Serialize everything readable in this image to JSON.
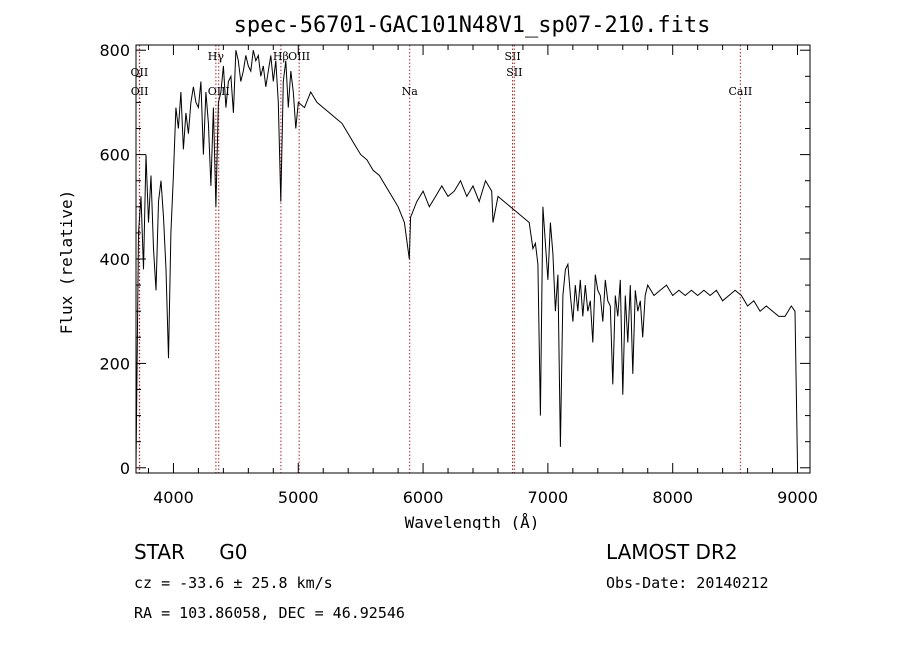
{
  "chart_data": {
    "type": "line",
    "title": "spec-56701-GAC101N48V1_sp07-210.fits",
    "xlabel": "Wavelength (Å)",
    "ylabel": "Flux (relative)",
    "xlim": [
      3700,
      9100
    ],
    "ylim": [
      -10,
      810
    ],
    "x_ticks": [
      4000,
      5000,
      6000,
      7000,
      8000,
      9000
    ],
    "y_ticks": [
      0,
      200,
      400,
      600,
      800
    ],
    "spectral_lines": [
      {
        "label": "OII",
        "wavelength": 3727,
        "row": 1
      },
      {
        "label": "OII",
        "wavelength": 3729,
        "row": 2
      },
      {
        "label": "Hγ",
        "wavelength": 4340,
        "row": 0
      },
      {
        "label": "OIII",
        "wavelength": 4363,
        "row": 2
      },
      {
        "label": "Hβ",
        "wavelength": 4861,
        "row": 0
      },
      {
        "label": "OIII",
        "wavelength": 5007,
        "row": 0
      },
      {
        "label": "Na",
        "wavelength": 5893,
        "row": 2
      },
      {
        "label": "SII",
        "wavelength": 6717,
        "row": 0
      },
      {
        "label": "SII",
        "wavelength": 6731,
        "row": 1
      },
      {
        "label": "CaII",
        "wavelength": 8542,
        "row": 2
      }
    ],
    "series": [
      {
        "x": [
          3700,
          3720,
          3740,
          3760,
          3780,
          3800,
          3820,
          3840,
          3860,
          3880,
          3900,
          3920,
          3940,
          3960,
          3980,
          4000,
          4020,
          4040,
          4060,
          4080,
          4100,
          4120,
          4140,
          4160,
          4180,
          4200,
          4220,
          4240,
          4260,
          4280,
          4300,
          4320,
          4340,
          4360,
          4380,
          4400,
          4420,
          4440,
          4460,
          4480,
          4500,
          4520,
          4540,
          4560,
          4580,
          4600,
          4620,
          4640,
          4660,
          4680,
          4700,
          4720,
          4740,
          4760,
          4780,
          4800,
          4820,
          4840,
          4860,
          4880,
          4900,
          4920,
          4940,
          4960,
          4980,
          5000,
          5050,
          5100,
          5150,
          5200,
          5250,
          5300,
          5350,
          5400,
          5450,
          5500,
          5550,
          5600,
          5650,
          5700,
          5750,
          5800,
          5850,
          5890,
          5900,
          5950,
          6000,
          6050,
          6100,
          6150,
          6200,
          6250,
          6300,
          6350,
          6400,
          6450,
          6500,
          6550,
          6560,
          6600,
          6650,
          6700,
          6750,
          6800,
          6850,
          6880,
          6900,
          6920,
          6940,
          6960,
          6980,
          7000,
          7020,
          7040,
          7060,
          7080,
          7100,
          7120,
          7140,
          7160,
          7180,
          7200,
          7220,
          7240,
          7260,
          7280,
          7300,
          7320,
          7340,
          7360,
          7380,
          7400,
          7420,
          7440,
          7460,
          7480,
          7500,
          7520,
          7540,
          7560,
          7580,
          7600,
          7620,
          7640,
          7660,
          7680,
          7700,
          7720,
          7740,
          7760,
          7780,
          7800,
          7850,
          7900,
          7950,
          8000,
          8050,
          8100,
          8150,
          8200,
          8250,
          8300,
          8350,
          8400,
          8450,
          8500,
          8550,
          8600,
          8650,
          8700,
          8750,
          8800,
          8850,
          8900,
          8950,
          8980,
          9000
        ],
        "y": [
          0,
          450,
          520,
          380,
          600,
          470,
          560,
          420,
          340,
          510,
          550,
          480,
          380,
          210,
          450,
          560,
          690,
          650,
          720,
          610,
          680,
          640,
          700,
          730,
          700,
          690,
          740,
          600,
          720,
          660,
          540,
          690,
          500,
          700,
          720,
          770,
          690,
          740,
          750,
          680,
          800,
          780,
          740,
          760,
          790,
          770,
          760,
          800,
          780,
          790,
          750,
          770,
          730,
          760,
          790,
          740,
          780,
          700,
          510,
          740,
          780,
          690,
          760,
          720,
          650,
          700,
          690,
          720,
          700,
          690,
          680,
          670,
          660,
          640,
          620,
          600,
          590,
          570,
          560,
          540,
          520,
          500,
          470,
          400,
          480,
          510,
          530,
          500,
          520,
          540,
          520,
          530,
          550,
          520,
          540,
          510,
          550,
          530,
          470,
          520,
          510,
          500,
          490,
          480,
          470,
          420,
          430,
          390,
          100,
          500,
          430,
          360,
          470,
          410,
          300,
          370,
          40,
          330,
          380,
          390,
          330,
          280,
          350,
          300,
          360,
          290,
          350,
          300,
          320,
          240,
          370,
          340,
          330,
          280,
          360,
          320,
          310,
          160,
          330,
          290,
          360,
          140,
          330,
          240,
          350,
          180,
          340,
          300,
          320,
          250,
          330,
          350,
          330,
          340,
          350,
          330,
          340,
          330,
          340,
          330,
          340,
          330,
          340,
          320,
          330,
          340,
          330,
          310,
          320,
          300,
          310,
          300,
          290,
          290,
          310,
          300,
          5
        ]
      }
    ]
  },
  "info": {
    "left_line1_a": "STAR",
    "left_line1_b": "G0",
    "left_line2": "cz = -33.6 ± 25.8 km/s",
    "left_line3": "RA = 103.86058, DEC =  46.92546",
    "right_line1": "LAMOST DR2",
    "right_line2": "Obs-Date: 20140212"
  }
}
